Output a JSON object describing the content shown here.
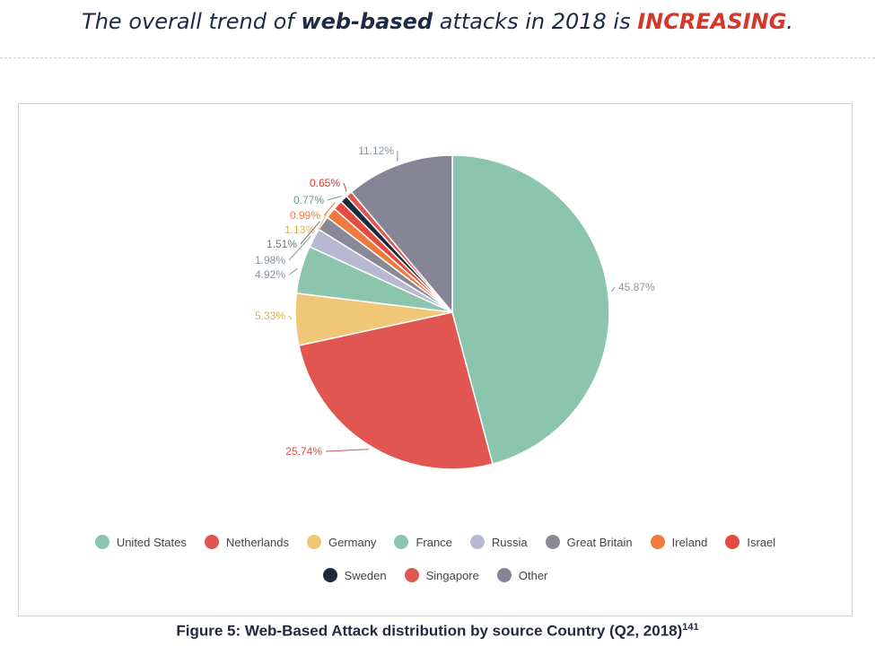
{
  "headline": {
    "prefix": "The overall trend of ",
    "bold": "web-based",
    "middle": " attacks in 2018 is ",
    "highlight": "INCREASING",
    "suffix": "."
  },
  "caption": {
    "text": "Figure 5: Web-Based Attack distribution by source Country (Q2, 2018)",
    "footnote": "141"
  },
  "chart_data": {
    "type": "pie",
    "start_angle_deg": 0,
    "direction": "clockwise",
    "legend_position": "bottom",
    "slices": [
      {
        "label": "United States",
        "value": 45.87,
        "display": "45.87%",
        "color": "#8cc5ad",
        "label_color": "#8a96a6"
      },
      {
        "label": "Netherlands",
        "value": 25.74,
        "display": "25.74%",
        "color": "#e15651",
        "label_color": "#d9534f"
      },
      {
        "label": "Germany",
        "value": 5.33,
        "display": "5.33%",
        "color": "#f0c776",
        "label_color": "#e8b24a"
      },
      {
        "label": "France",
        "value": 4.92,
        "display": "4.92%",
        "color": "#8cc5ad",
        "label_color": "#8a96a6"
      },
      {
        "label": "Russia",
        "value": 1.98,
        "display": "1.98%",
        "color": "#b8b8d2",
        "label_color": "#8a96a6"
      },
      {
        "label": "Great Britain",
        "value": 1.51,
        "display": "1.51%",
        "color": "#8a8796",
        "label_color": "#6d7585"
      },
      {
        "label": "Ireland",
        "value": 1.13,
        "display": "1.13%",
        "color": "#f07a3e",
        "label_color": "#e8b24a"
      },
      {
        "label": "Israel",
        "value": 0.99,
        "display": "0.99%",
        "color": "#e44c3f",
        "label_color": "#f07a3e"
      },
      {
        "label": "Sweden",
        "value": 0.77,
        "display": "0.77%",
        "color": "#1a2b3c",
        "label_color": "#5a9e85"
      },
      {
        "label": "Singapore",
        "value": 0.65,
        "display": "0.65%",
        "color": "#e15651",
        "label_color": "#d9362b"
      },
      {
        "label": "Other",
        "value": 11.12,
        "display": "11.12%",
        "color": "#868595",
        "label_color": "#8a96a6"
      }
    ]
  }
}
